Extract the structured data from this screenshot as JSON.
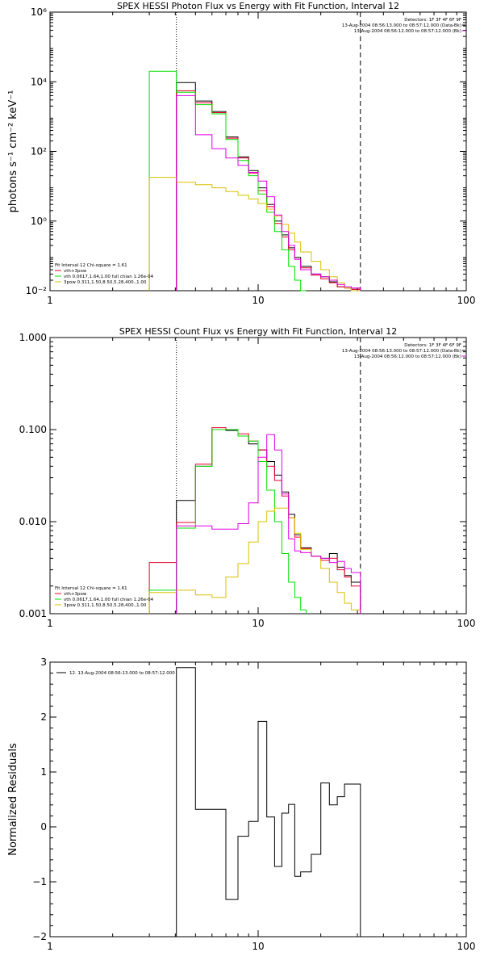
{
  "colors": {
    "black": "#000000",
    "red": "#e8002a",
    "green": "#00e000",
    "yellow": "#d8c000",
    "magenta": "#e000e0"
  },
  "chart_data": [
    {
      "type": "line",
      "title": "SPEX HESSI Photon Flux vs Energy with Fit Function, Interval 12",
      "xlabel": "",
      "ylabel": "photons s⁻¹ cm⁻² keV⁻¹",
      "xscale": "log",
      "yscale": "log",
      "xlim": [
        1,
        100
      ],
      "ylim": [
        0.01,
        1000000
      ],
      "xticks": [
        {
          "v": 1,
          "label": "1"
        },
        {
          "v": 10,
          "label": "10"
        },
        {
          "v": 100,
          "label": "100"
        }
      ],
      "yticks": [
        {
          "v": 0.01,
          "label": "10⁻²"
        },
        {
          "v": 1,
          "label": "10⁰"
        },
        {
          "v": 100,
          "label": "10²"
        },
        {
          "v": 10000,
          "label": "10⁴"
        },
        {
          "v": 1000000,
          "label": "10⁶"
        }
      ],
      "vlines": [
        {
          "x": 4.05,
          "style": "dotted"
        },
        {
          "x": 31,
          "style": "dashed"
        }
      ],
      "legend_topright": [
        {
          "text": "Detectors: 1F 3F 4F 6F 9F",
          "color": "#000000"
        },
        {
          "text": "13-Aug-2004 08:56:13.000 to 08:57:12.000 (Data-Bk)",
          "color": "#000000"
        },
        {
          "text": "13-Aug-2004 08:56:12.000 to 08:57:12.000 (Bk)",
          "color": "#e000e0"
        }
      ],
      "legend_bottomleft": [
        {
          "text": "Fit Interval 12   Chi-square = 1.61",
          "color": "#000000"
        },
        {
          "text": "vth+3pow",
          "color": "#e8002a"
        },
        {
          "text": "vth 0.0617,1.64,1.00  full chian 1.26e-04",
          "color": "#00e000"
        },
        {
          "text": "3pow 0.311,1.50,8.50,5.28,400.,1.00",
          "color": "#d8c000"
        }
      ],
      "series": [
        {
          "color": "#000000",
          "edges": [
            4.05,
            5,
            6,
            7,
            8,
            9,
            10,
            11,
            12,
            13,
            14,
            15,
            16,
            18,
            20,
            22,
            24,
            26,
            28,
            31
          ],
          "values": [
            9500,
            2800,
            1400,
            260,
            70,
            28,
            9,
            3,
            1,
            0.4,
            0.17,
            0.09,
            0.05,
            0.03,
            0.025,
            0.018,
            0.013,
            0.012,
            0.011
          ]
        },
        {
          "color": "#e8002a",
          "edges": [
            4.05,
            5,
            6,
            7,
            8,
            9,
            10,
            11,
            12,
            13,
            14,
            15,
            16,
            18,
            20,
            22,
            24,
            26,
            28,
            31
          ],
          "values": [
            5500,
            2500,
            1300,
            240,
            65,
            24,
            7.5,
            2.6,
            0.85,
            0.35,
            0.15,
            0.08,
            0.045,
            0.028,
            0.022,
            0.017,
            0.013,
            0.012,
            0.011
          ]
        },
        {
          "color": "#00e000",
          "edges": [
            3,
            4.05,
            5,
            6,
            7,
            8,
            9,
            10,
            11,
            12,
            13,
            14,
            15,
            16,
            17
          ],
          "values": [
            20000,
            5000,
            2200,
            1200,
            220,
            55,
            20,
            6,
            1.8,
            0.5,
            0.15,
            0.05,
            0.02,
            0.01
          ]
        },
        {
          "color": "#d8c000",
          "edges": [
            3,
            4.05,
            5,
            6,
            7,
            8,
            9,
            10,
            11,
            12,
            13,
            14,
            15,
            16,
            18,
            20,
            22,
            24,
            26,
            28,
            31
          ],
          "values": [
            18,
            13,
            11,
            9,
            7,
            5.5,
            4.3,
            3.2,
            2.2,
            1.4,
            0.8,
            0.45,
            0.25,
            0.13,
            0.07,
            0.04,
            0.025,
            0.017,
            0.012,
            0.01
          ]
        },
        {
          "color": "#e000e0",
          "edges": [
            4.05,
            5,
            6,
            7,
            8,
            9,
            10,
            11,
            12,
            13,
            14,
            15,
            16,
            18,
            20,
            22,
            24,
            26,
            28,
            31
          ],
          "values": [
            4000,
            300,
            120,
            65,
            40,
            25,
            14,
            5,
            1.5,
            0.5,
            0.2,
            0.08,
            0.04,
            0.03,
            0.025,
            0.02,
            0.015,
            0.013,
            0.012
          ]
        }
      ]
    },
    {
      "type": "line",
      "title": "SPEX HESSI Count Flux vs Energy with Fit Function, Interval 12",
      "xlabel": "",
      "ylabel": "",
      "xscale": "log",
      "yscale": "log",
      "xlim": [
        1,
        100
      ],
      "ylim": [
        0.001,
        1
      ],
      "xticks": [
        {
          "v": 1,
          "label": "1"
        },
        {
          "v": 10,
          "label": "10"
        },
        {
          "v": 100,
          "label": "100"
        }
      ],
      "yticks": [
        {
          "v": 0.001,
          "label": "0.001"
        },
        {
          "v": 0.01,
          "label": "0.010"
        },
        {
          "v": 0.1,
          "label": "0.100"
        },
        {
          "v": 1,
          "label": "1.000"
        }
      ],
      "vlines": [
        {
          "x": 4.05,
          "style": "dotted"
        },
        {
          "x": 31,
          "style": "dashed"
        }
      ],
      "legend_topright": [
        {
          "text": "Detectors: 1F 3F 4F 6F 9F",
          "color": "#000000"
        },
        {
          "text": "13-Aug-2004 08:56:13.000 to 08:57:12.000 (Data-Bk)",
          "color": "#000000"
        },
        {
          "text": "13-Aug-2004 08:56:12.000 to 08:57:12.000 (Bk)",
          "color": "#e000e0"
        }
      ],
      "legend_bottomleft": [
        {
          "text": "Fit Interval 12   Chi-square = 1.61",
          "color": "#000000"
        },
        {
          "text": "vth+3pow",
          "color": "#e8002a"
        },
        {
          "text": "vth 0.0617,1.64,1.00  full chian 1.26e-04",
          "color": "#00e000"
        },
        {
          "text": "3pow 0.311,1.50,8.50,5.28,400.,1.00",
          "color": "#d8c000"
        }
      ],
      "series": [
        {
          "color": "#000000",
          "edges": [
            4.05,
            5,
            6,
            7,
            8,
            9,
            10,
            11,
            12,
            13,
            14,
            15,
            16,
            18,
            20,
            22,
            24,
            26,
            28,
            31
          ],
          "values": [
            0.017,
            0.04,
            0.1,
            0.098,
            0.085,
            0.07,
            0.06,
            0.045,
            0.032,
            0.021,
            0.012,
            0.0072,
            0.0052,
            0.0042,
            0.004,
            0.0045,
            0.0032,
            0.0026,
            0.0022
          ]
        },
        {
          "color": "#e8002a",
          "edges": [
            3,
            4.05,
            5,
            6,
            7,
            8,
            9,
            10,
            11,
            12,
            13,
            14,
            15,
            16,
            18,
            20,
            22,
            24,
            26,
            28,
            31
          ],
          "values": [
            0.0036,
            0.0098,
            0.042,
            0.105,
            0.1,
            0.09,
            0.075,
            0.06,
            0.04,
            0.028,
            0.019,
            0.011,
            0.0068,
            0.0051,
            0.0042,
            0.0038,
            0.004,
            0.003,
            0.0025,
            0.002
          ]
        },
        {
          "color": "#00e000",
          "edges": [
            3,
            4.05,
            5,
            6,
            7,
            8,
            9,
            10,
            11,
            12,
            13,
            14,
            15,
            16,
            17
          ],
          "values": [
            0.0018,
            0.0085,
            0.04,
            0.1,
            0.1,
            0.085,
            0.075,
            0.045,
            0.022,
            0.01,
            0.0045,
            0.0022,
            0.0015,
            0.0011
          ]
        },
        {
          "color": "#d8c000",
          "edges": [
            3,
            4.05,
            5,
            6,
            7,
            8,
            9,
            10,
            11,
            12,
            13,
            14,
            15,
            16,
            18,
            20,
            22,
            24,
            26,
            28,
            31
          ],
          "values": [
            0.0017,
            0.0018,
            0.0016,
            0.0015,
            0.0025,
            0.0035,
            0.006,
            0.01,
            0.013,
            0.014,
            0.014,
            0.011,
            0.0075,
            0.005,
            0.0042,
            0.0031,
            0.0022,
            0.0017,
            0.0013,
            0.0011
          ]
        },
        {
          "color": "#e000e0",
          "edges": [
            4.05,
            5,
            6,
            7,
            8,
            9,
            10,
            11,
            12,
            13,
            14,
            15,
            16,
            18,
            20,
            22,
            24,
            26,
            28,
            31
          ],
          "values": [
            0.009,
            0.009,
            0.0083,
            0.0083,
            0.0095,
            0.016,
            0.05,
            0.088,
            0.06,
            0.02,
            0.0065,
            0.0048,
            0.0046,
            0.0042,
            0.004,
            0.0036,
            0.0037,
            0.0031,
            0.0028
          ]
        }
      ]
    },
    {
      "type": "line",
      "title": "",
      "xlabel": "",
      "ylabel": "Normalized Residuals",
      "xscale": "log",
      "yscale": "linear",
      "xlim": [
        1,
        100
      ],
      "ylim": [
        -2,
        3
      ],
      "xticks": [
        {
          "v": 1,
          "label": "1"
        },
        {
          "v": 10,
          "label": "10"
        },
        {
          "v": 100,
          "label": "100"
        }
      ],
      "yticks": [
        {
          "v": -2,
          "label": "−2"
        },
        {
          "v": -1,
          "label": "−1"
        },
        {
          "v": 0,
          "label": "0"
        },
        {
          "v": 1,
          "label": "1"
        },
        {
          "v": 2,
          "label": "2"
        },
        {
          "v": 3,
          "label": "3"
        }
      ],
      "vlines": [],
      "legend_topright": [],
      "legend_bottomleft": [],
      "legend_topleft": [
        {
          "text": "12. 13-Aug-2004 08:56:13.000 to 08:57:12.000",
          "color": "#000000"
        }
      ],
      "series": [
        {
          "color": "#000000",
          "edges": [
            4.05,
            5,
            6,
            7,
            8,
            9,
            10,
            11,
            12,
            13,
            14,
            15,
            16,
            18,
            20,
            22,
            24,
            26,
            28,
            31
          ],
          "values": [
            2.9,
            0.32,
            0.32,
            -1.32,
            -0.17,
            0.1,
            1.92,
            0.18,
            -0.72,
            0.25,
            0.41,
            -0.9,
            -0.82,
            -0.5,
            0.8,
            0.4,
            0.55,
            0.78,
            0.78
          ],
          "drop_ends": true,
          "ymin": -2
        }
      ]
    }
  ]
}
